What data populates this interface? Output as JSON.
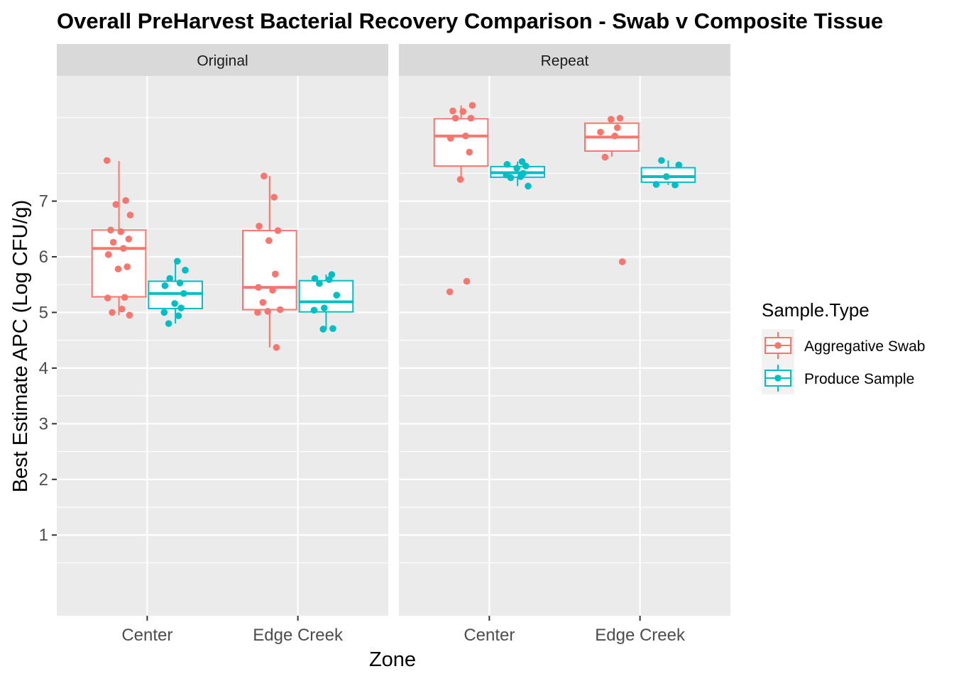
{
  "chart_data": {
    "type": "box",
    "title": "Overall PreHarvest Bacterial Recovery Comparison - Swab v Composite Tissue",
    "xlabel": "Zone",
    "ylabel": "Best Estimate APC (Log CFU/g)",
    "ylim": [
      -0.45,
      9.25
    ],
    "y_ticks": [
      1,
      2,
      3,
      4,
      5,
      6,
      7
    ],
    "y_minor_ticks": [
      0.5,
      1.5,
      2.5,
      3.5,
      4.5,
      5.5,
      6.5,
      7.5,
      8.5
    ],
    "categories": [
      "Center",
      "Edge Creek"
    ],
    "facets": [
      "Original",
      "Repeat"
    ],
    "grid": true,
    "legend": {
      "title": "Sample.Type",
      "position": "right",
      "entries": [
        "Aggregative Swab",
        "Produce Sample"
      ]
    },
    "colors": {
      "Aggregative Swab": "#f8766d",
      "Produce Sample": "#00bfc4",
      "panel_background": "#ebebeb",
      "strip_background": "#d9d9d9",
      "grid": "#ffffff"
    },
    "series": [
      {
        "name": "Aggregative Swab",
        "boxes": [
          {
            "facet": "Original",
            "category": "Center",
            "q1": 5.28,
            "median": 6.15,
            "q3": 6.48,
            "whisker_low": 4.95,
            "whisker_high": 7.72
          },
          {
            "facet": "Original",
            "category": "Edge Creek",
            "q1": 5.05,
            "median": 5.45,
            "q3": 6.47,
            "whisker_low": 4.37,
            "whisker_high": 7.45
          },
          {
            "facet": "Repeat",
            "category": "Center",
            "q1": 7.63,
            "median": 8.17,
            "q3": 8.48,
            "whisker_low": 7.4,
            "whisker_high": 8.72
          },
          {
            "facet": "Repeat",
            "category": "Edge Creek",
            "q1": 7.9,
            "median": 8.15,
            "q3": 8.4,
            "whisker_low": 7.8,
            "whisker_high": 8.49
          }
        ],
        "points": [
          {
            "facet": "Original",
            "category": "Center",
            "values": [
              7.73,
              7.01,
              6.94,
              6.75,
              6.48,
              6.45,
              6.32,
              6.26,
              6.15,
              6.04,
              5.82,
              5.78,
              5.27,
              5.26,
              5.06,
              5.0,
              4.95
            ]
          },
          {
            "facet": "Original",
            "category": "Edge Creek",
            "values": [
              7.45,
              7.07,
              6.55,
              6.47,
              6.29,
              5.69,
              5.45,
              5.4,
              5.18,
              5.05,
              5.02,
              5.0,
              4.37
            ]
          },
          {
            "facet": "Repeat",
            "category": "Center",
            "values": [
              8.72,
              8.62,
              8.61,
              8.49,
              8.49,
              8.17,
              8.13,
              7.88,
              7.39,
              5.56,
              5.37
            ]
          },
          {
            "facet": "Repeat",
            "category": "Edge Creek",
            "values": [
              8.49,
              8.47,
              8.32,
              8.24,
              8.17,
              7.79,
              5.91
            ]
          }
        ]
      },
      {
        "name": "Produce Sample",
        "boxes": [
          {
            "facet": "Original",
            "category": "Center",
            "q1": 5.07,
            "median": 5.34,
            "q3": 5.56,
            "whisker_low": 4.8,
            "whisker_high": 5.92
          },
          {
            "facet": "Original",
            "category": "Edge Creek",
            "q1": 5.01,
            "median": 5.19,
            "q3": 5.57,
            "whisker_low": 4.7,
            "whisker_high": 5.68
          },
          {
            "facet": "Repeat",
            "category": "Center",
            "q1": 7.43,
            "median": 7.51,
            "q3": 7.62,
            "whisker_low": 7.27,
            "whisker_high": 7.71
          },
          {
            "facet": "Repeat",
            "category": "Edge Creek",
            "q1": 7.34,
            "median": 7.44,
            "q3": 7.6,
            "whisker_low": 7.29,
            "whisker_high": 7.73
          }
        ],
        "points": [
          {
            "facet": "Original",
            "category": "Center",
            "values": [
              5.92,
              5.76,
              5.61,
              5.53,
              5.48,
              5.34,
              5.16,
              5.08,
              5.0,
              4.94,
              4.8
            ]
          },
          {
            "facet": "Original",
            "category": "Edge Creek",
            "values": [
              5.68,
              5.61,
              5.59,
              5.52,
              5.31,
              5.08,
              5.04,
              4.71,
              4.7
            ]
          },
          {
            "facet": "Repeat",
            "category": "Center",
            "values": [
              7.71,
              7.66,
              7.63,
              7.59,
              7.5,
              7.47,
              7.44,
              7.42,
              7.27
            ]
          },
          {
            "facet": "Repeat",
            "category": "Edge Creek",
            "values": [
              7.73,
              7.65,
              7.44,
              7.3,
              7.29
            ]
          }
        ]
      }
    ]
  }
}
